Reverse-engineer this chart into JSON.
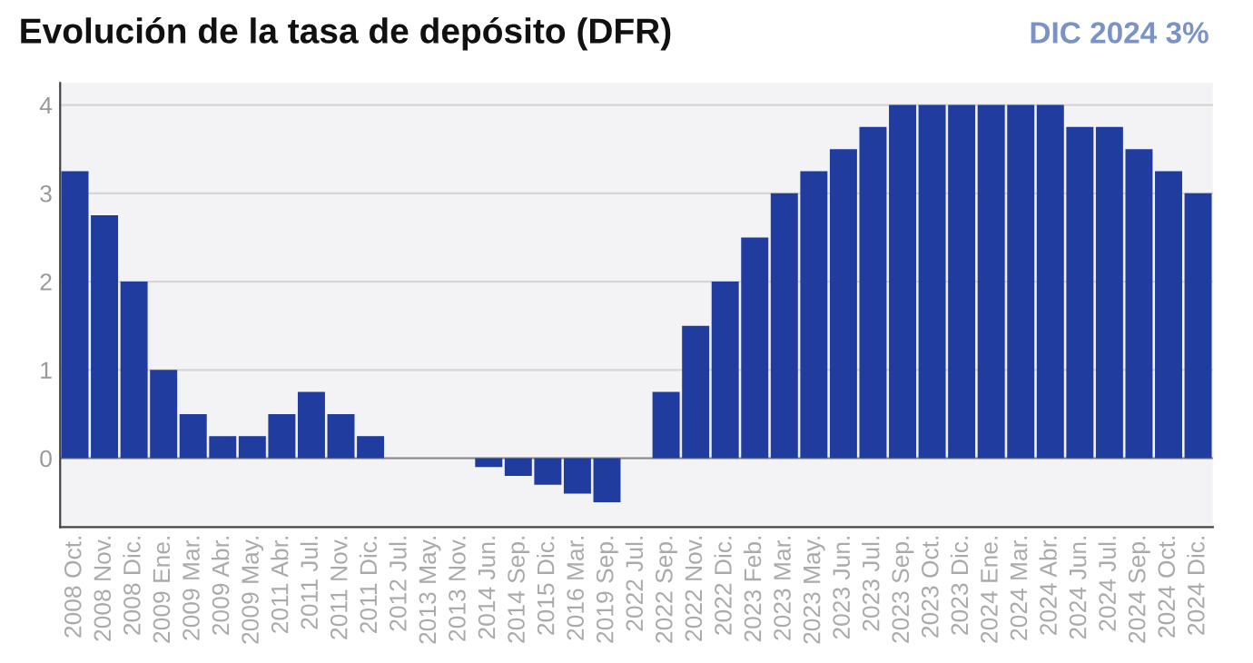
{
  "chart_data": {
    "type": "bar",
    "title": "Evolución de la tasa de depósito (DFR)",
    "subtitle": "DIC 2024 3%",
    "categories": [
      "2008 Oct.",
      "2008 Nov.",
      "2008 Dic.",
      "2009 Ene.",
      "2009 Mar.",
      "2009 Abr.",
      "2009 May.",
      "2011 Abr.",
      "2011 Jul.",
      "2011 Nov.",
      "2011 Dic.",
      "2012 Jul.",
      "2013 May.",
      "2013 Nov.",
      "2014 Jun.",
      "2014 Sep.",
      "2015 Dic.",
      "2016 Mar.",
      "2019 Sep.",
      "2022 Jul.",
      "2022 Sep.",
      "2022 Nov.",
      "2022 Dic.",
      "2023 Feb.",
      "2023 Mar.",
      "2023 May.",
      "2023 Jun.",
      "2023 Jul.",
      "2023 Sep.",
      "2023 Oct.",
      "2023 Dic.",
      "2024 Ene.",
      "2024 Mar.",
      "2024 Abr.",
      "2024 Jun.",
      "2024 Jul.",
      "2024 Sep.",
      "2024 Oct.",
      "2024 Dic."
    ],
    "values": [
      3.25,
      2.75,
      2.0,
      1.0,
      0.5,
      0.25,
      0.25,
      0.5,
      0.75,
      0.5,
      0.25,
      0,
      0,
      0,
      -0.1,
      -0.2,
      -0.3,
      -0.4,
      -0.5,
      0,
      0.75,
      1.5,
      2.0,
      2.5,
      3.0,
      3.25,
      3.5,
      3.75,
      4.0,
      4.0,
      4.0,
      4.0,
      4.0,
      4.0,
      3.75,
      3.75,
      3.5,
      3.25,
      3.0
    ],
    "color": "#1f3c9e",
    "ylim": [
      -0.78,
      4.25
    ],
    "yticks": [
      0,
      1,
      2,
      3,
      4
    ],
    "grid": "y"
  }
}
